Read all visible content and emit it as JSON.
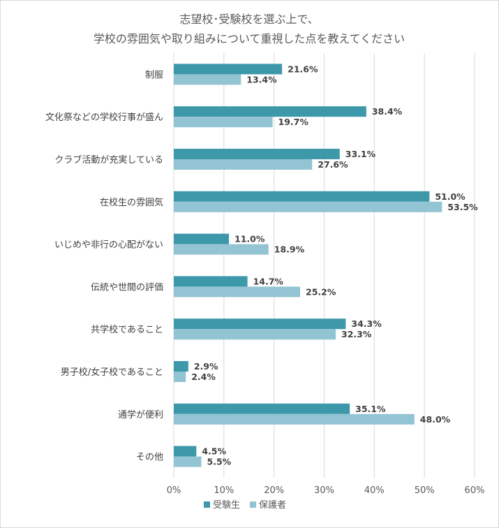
{
  "chart_data": {
    "type": "bar",
    "orientation": "horizontal",
    "title": [
      "志望校･受験校を選ぶ上で、",
      "学校の雰囲気や取り組みについて重視した点を教えてください"
    ],
    "categories": [
      "制服",
      "文化祭などの学校行事が盛ん",
      "クラブ活動が充実している",
      "在校生の雰囲気",
      "いじめや非行の心配がない",
      "伝統や世間の評価",
      "共学校であること",
      "男子校/女子校であること",
      "通学が便利",
      "その他"
    ],
    "series": [
      {
        "name": "受験生",
        "color": "#3d98a9",
        "values": [
          21.6,
          38.4,
          33.1,
          51.0,
          11.0,
          14.7,
          34.3,
          2.9,
          35.1,
          4.5
        ]
      },
      {
        "name": "保護者",
        "color": "#93c4d3",
        "values": [
          13.4,
          19.7,
          27.6,
          53.5,
          18.9,
          25.2,
          32.3,
          2.4,
          48.0,
          5.5
        ]
      }
    ],
    "xlim": [
      0,
      60
    ],
    "xticks": [
      0,
      10,
      20,
      30,
      40,
      50,
      60
    ],
    "tick_suffix": "%",
    "value_suffix": "%",
    "grid": true,
    "legend_position": "bottom"
  }
}
